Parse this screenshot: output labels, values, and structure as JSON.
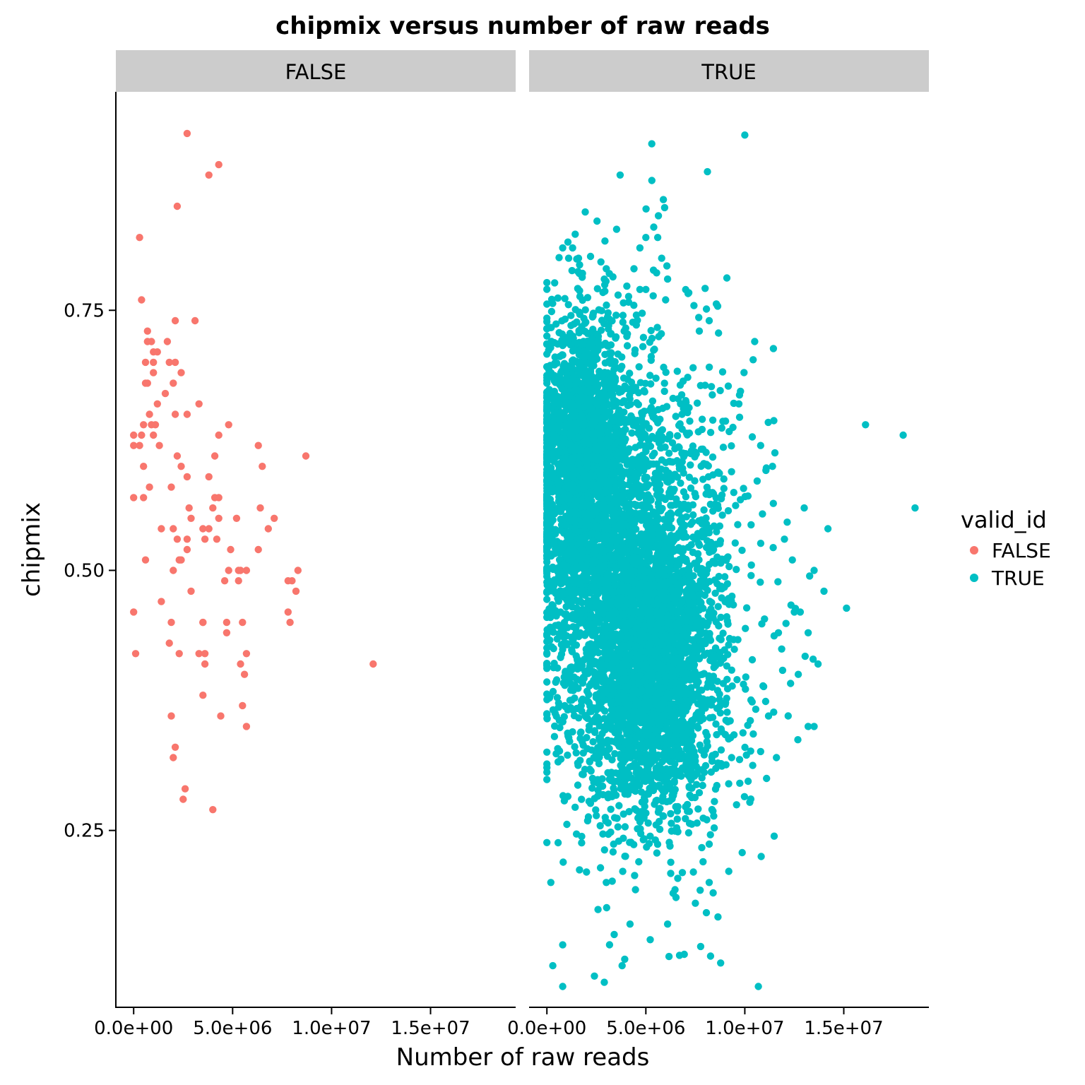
{
  "chart_data": {
    "type": "scatter",
    "title": "chipmix versus number of raw reads",
    "xlabel": "Number of raw reads",
    "ylabel": "chipmix",
    "facet_variable": "valid_id",
    "panels": [
      "FALSE",
      "TRUE"
    ],
    "x_ticks": [
      0,
      5000000,
      10000000,
      15000000
    ],
    "x_tick_labels": [
      "0.0e+00",
      "5.0e+06",
      "1.0e+07",
      "1.5e+07"
    ],
    "y_ticks": [
      0.25,
      0.5,
      0.75
    ],
    "y_tick_labels": [
      "0.25",
      "0.50",
      "0.75"
    ],
    "xlim": [
      -900000,
      19300000
    ],
    "ylim": [
      0.08,
      0.96
    ],
    "grid": false,
    "legend": {
      "title": "valid_id",
      "position": "right",
      "entries": [
        {
          "label": "FALSE",
          "color": "#F8766D"
        },
        {
          "label": "TRUE",
          "color": "#00BFC4"
        }
      ]
    },
    "series": [
      {
        "name": "FALSE",
        "panel": "FALSE",
        "color": "#F8766D",
        "points": [
          [
            2700000,
            0.92
          ],
          [
            4300000,
            0.89
          ],
          [
            3800000,
            0.88
          ],
          [
            2200000,
            0.85
          ],
          [
            300000,
            0.82
          ],
          [
            400000,
            0.76
          ],
          [
            3100000,
            0.74
          ],
          [
            2100000,
            0.74
          ],
          [
            700000,
            0.73
          ],
          [
            700000,
            0.72
          ],
          [
            900000,
            0.72
          ],
          [
            1000000,
            0.71
          ],
          [
            1700000,
            0.72
          ],
          [
            1200000,
            0.71
          ],
          [
            1000000,
            0.7
          ],
          [
            600000,
            0.7
          ],
          [
            1800000,
            0.7
          ],
          [
            2100000,
            0.7
          ],
          [
            2400000,
            0.69
          ],
          [
            1000000,
            0.69
          ],
          [
            2000000,
            0.68
          ],
          [
            700000,
            0.68
          ],
          [
            600000,
            0.68
          ],
          [
            1600000,
            0.67
          ],
          [
            3300000,
            0.66
          ],
          [
            1200000,
            0.66
          ],
          [
            2100000,
            0.65
          ],
          [
            2700000,
            0.65
          ],
          [
            800000,
            0.65
          ],
          [
            900000,
            0.64
          ],
          [
            1100000,
            0.64
          ],
          [
            4800000,
            0.64
          ],
          [
            500000,
            0.64
          ],
          [
            400000,
            0.63
          ],
          [
            1000000,
            0.63
          ],
          [
            0,
            0.63
          ],
          [
            0,
            0.62
          ],
          [
            300000,
            0.62
          ],
          [
            4300000,
            0.63
          ],
          [
            6300000,
            0.62
          ],
          [
            8700000,
            0.61
          ],
          [
            1300000,
            0.62
          ],
          [
            2200000,
            0.61
          ],
          [
            2400000,
            0.6
          ],
          [
            4100000,
            0.61
          ],
          [
            500000,
            0.6
          ],
          [
            6500000,
            0.6
          ],
          [
            2700000,
            0.59
          ],
          [
            3800000,
            0.59
          ],
          [
            0,
            0.57
          ],
          [
            500000,
            0.57
          ],
          [
            1900000,
            0.58
          ],
          [
            800000,
            0.58
          ],
          [
            4100000,
            0.57
          ],
          [
            4300000,
            0.57
          ],
          [
            2800000,
            0.56
          ],
          [
            4000000,
            0.56
          ],
          [
            6400000,
            0.56
          ],
          [
            4300000,
            0.55
          ],
          [
            2900000,
            0.55
          ],
          [
            7100000,
            0.55
          ],
          [
            5200000,
            0.55
          ],
          [
            1400000,
            0.54
          ],
          [
            3800000,
            0.54
          ],
          [
            2000000,
            0.54
          ],
          [
            3500000,
            0.54
          ],
          [
            2200000,
            0.53
          ],
          [
            6800000,
            0.54
          ],
          [
            4200000,
            0.53
          ],
          [
            3600000,
            0.53
          ],
          [
            2700000,
            0.53
          ],
          [
            6300000,
            0.52
          ],
          [
            2700000,
            0.52
          ],
          [
            4900000,
            0.52
          ],
          [
            2300000,
            0.51
          ],
          [
            2400000,
            0.51
          ],
          [
            600000,
            0.51
          ],
          [
            2000000,
            0.5
          ],
          [
            4800000,
            0.5
          ],
          [
            5300000,
            0.5
          ],
          [
            8300000,
            0.5
          ],
          [
            5700000,
            0.5
          ],
          [
            5300000,
            0.49
          ],
          [
            5400000,
            0.5
          ],
          [
            8000000,
            0.49
          ],
          [
            4600000,
            0.49
          ],
          [
            7800000,
            0.49
          ],
          [
            2900000,
            0.48
          ],
          [
            8200000,
            0.48
          ],
          [
            1400000,
            0.47
          ],
          [
            0,
            0.46
          ],
          [
            7800000,
            0.46
          ],
          [
            5500000,
            0.45
          ],
          [
            1900000,
            0.45
          ],
          [
            3500000,
            0.45
          ],
          [
            4700000,
            0.45
          ],
          [
            3500000,
            0.45
          ],
          [
            7900000,
            0.45
          ],
          [
            4700000,
            0.44
          ],
          [
            1800000,
            0.43
          ],
          [
            5700000,
            0.42
          ],
          [
            3600000,
            0.42
          ],
          [
            100000,
            0.42
          ],
          [
            2300000,
            0.42
          ],
          [
            3300000,
            0.42
          ],
          [
            5400000,
            0.41
          ],
          [
            3600000,
            0.41
          ],
          [
            12100000,
            0.41
          ],
          [
            5600000,
            0.4
          ],
          [
            3500000,
            0.38
          ],
          [
            5500000,
            0.37
          ],
          [
            4400000,
            0.36
          ],
          [
            1900000,
            0.36
          ],
          [
            5700000,
            0.35
          ],
          [
            2100000,
            0.33
          ],
          [
            2000000,
            0.32
          ],
          [
            2600000,
            0.29
          ],
          [
            2500000,
            0.28
          ],
          [
            4000000,
            0.27
          ]
        ]
      },
      {
        "name": "TRUE",
        "panel": "TRUE",
        "color": "#00BFC4",
        "cores": [
          {
            "x_mean": 1800000,
            "x_sd": 1100000,
            "y_mean": 0.61,
            "y_sd": 0.068,
            "n": 1700
          },
          {
            "x_mean": 5200000,
            "x_sd": 1500000,
            "y_mean": 0.42,
            "y_sd": 0.07,
            "n": 2300
          },
          {
            "x_mean": 3200000,
            "x_sd": 1900000,
            "y_mean": 0.5,
            "y_sd": 0.11,
            "n": 1600
          },
          {
            "x_mean": 6400000,
            "x_sd": 2400000,
            "y_mean": 0.46,
            "y_sd": 0.13,
            "n": 900
          }
        ],
        "points": [
          [
            5300000,
            0.91
          ],
          [
            3700000,
            0.88
          ],
          [
            5400000,
            0.83
          ],
          [
            5000000,
            0.82
          ],
          [
            5600000,
            0.82
          ],
          [
            800000,
            0.81
          ],
          [
            1300000,
            0.81
          ],
          [
            4700000,
            0.81
          ],
          [
            1100000,
            0.8
          ],
          [
            1600000,
            0.8
          ],
          [
            5800000,
            0.8
          ],
          [
            3000000,
            0.79
          ],
          [
            4400000,
            0.79
          ],
          [
            2900000,
            0.78
          ],
          [
            6100000,
            0.78
          ],
          [
            5000000,
            0.77
          ],
          [
            4700000,
            0.77
          ],
          [
            6000000,
            0.76
          ],
          [
            8200000,
            0.74
          ],
          [
            7700000,
            0.73
          ],
          [
            10500000,
            0.72
          ],
          [
            16100000,
            0.64
          ],
          [
            18000000,
            0.63
          ],
          [
            10800000,
            0.62
          ],
          [
            18600000,
            0.56
          ],
          [
            13000000,
            0.56
          ],
          [
            14200000,
            0.54
          ],
          [
            12400000,
            0.51
          ],
          [
            13500000,
            0.5
          ],
          [
            14000000,
            0.48
          ],
          [
            12500000,
            0.46
          ],
          [
            11700000,
            0.44
          ],
          [
            13200000,
            0.44
          ],
          [
            13700000,
            0.41
          ],
          [
            12700000,
            0.4
          ],
          [
            13200000,
            0.35
          ],
          [
            13500000,
            0.35
          ],
          [
            11200000,
            0.36
          ],
          [
            11600000,
            0.32
          ],
          [
            11100000,
            0.3
          ],
          [
            800000,
            0.14
          ],
          [
            300000,
            0.12
          ],
          [
            800000,
            0.1
          ],
          [
            2400000,
            0.11
          ],
          [
            3800000,
            0.12
          ],
          [
            6700000,
            0.13
          ],
          [
            3400000,
            0.15
          ],
          [
            4200000,
            0.16
          ],
          [
            6100000,
            0.16
          ],
          [
            7500000,
            0.18
          ],
          [
            8200000,
            0.2
          ],
          [
            8400000,
            0.19
          ],
          [
            7400000,
            0.21
          ],
          [
            3000000,
            0.2
          ],
          [
            2000000,
            0.21
          ],
          [
            200000,
            0.2
          ],
          [
            9700000,
            0.66
          ],
          [
            11400000,
            0.6
          ],
          [
            12000000,
            0.53
          ],
          [
            12800000,
            0.46
          ]
        ]
      }
    ]
  }
}
